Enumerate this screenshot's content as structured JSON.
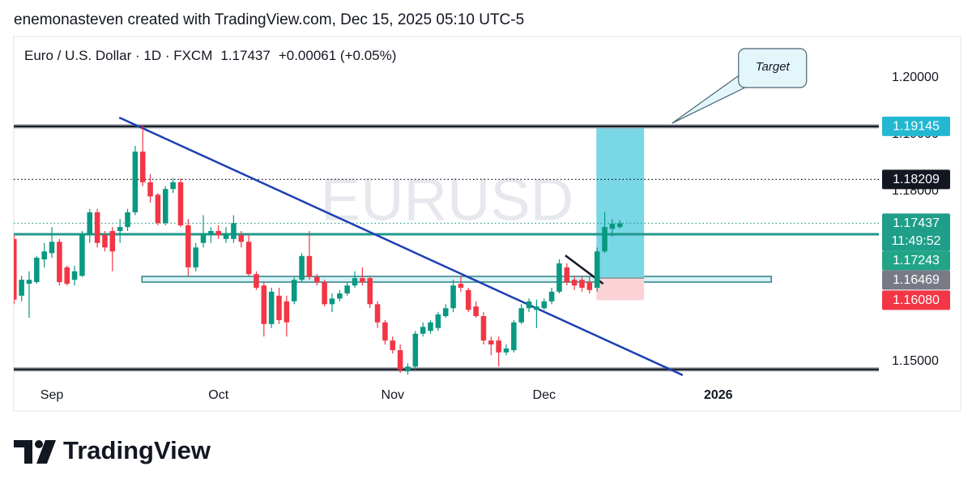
{
  "caption": "enemonasteven created with TradingView.com, Dec 15, 2025 05:10 UTC-5",
  "footer": {
    "brand": "TradingView"
  },
  "chart_data": {
    "type": "candlestick",
    "header": {
      "name": "Euro / U.S. Dollar · 1D · FXCM",
      "price": "1.17437",
      "change": "+0.00061 (+0.05%)"
    },
    "watermark": "EURUSD",
    "up_color": "#089981",
    "down_color": "#f23645",
    "x": [
      -5,
      -4,
      -3,
      -2,
      -1,
      0,
      1,
      2,
      3,
      4,
      5,
      6,
      7,
      8,
      9,
      10,
      11,
      12,
      13,
      14,
      15,
      16,
      17,
      18,
      19,
      20,
      21,
      22,
      23,
      24,
      25,
      26,
      27,
      28,
      29,
      30,
      31,
      32,
      33,
      34,
      35,
      36,
      37,
      38,
      39,
      40,
      41,
      42,
      43,
      44,
      45,
      46,
      47,
      48,
      49,
      50,
      51,
      52,
      53,
      54,
      55,
      56,
      57,
      58,
      59,
      60,
      61,
      62,
      63,
      64,
      65,
      66,
      67,
      68,
      69,
      70,
      71,
      72,
      73,
      74,
      75
    ],
    "open": [
      1.1716,
      1.1616,
      1.1637,
      1.164,
      1.168,
      1.1691,
      1.1711,
      1.1666,
      1.1644,
      1.1651,
      1.1723,
      1.1763,
      1.1723,
      1.173,
      1.173,
      1.1737,
      1.1763,
      1.187,
      1.1816,
      1.1794,
      1.1744,
      1.1804,
      1.1816,
      1.174,
      1.1666,
      1.1709,
      1.1723,
      1.173,
      1.1716,
      1.1716,
      1.1723,
      1.1711,
      1.1654,
      1.1634,
      1.1566,
      1.1616,
      1.1606,
      1.1606,
      1.1644,
      1.1686,
      1.1649,
      1.164,
      1.1601,
      1.1611,
      1.162,
      1.1634,
      1.1647,
      1.1647,
      1.1601,
      1.1569,
      1.1537,
      1.152,
      1.1483,
      1.1491,
      1.1549,
      1.1554,
      1.1559,
      1.158,
      1.1594,
      1.1637,
      1.1626,
      1.1597,
      1.158,
      1.1537,
      1.1537,
      1.1516,
      1.152,
      1.1569,
      1.1594,
      1.1591,
      1.1594,
      1.1606,
      1.1623,
      1.1666,
      1.1644,
      1.1644,
      1.164,
      1.163,
      1.1694,
      1.1734,
      1.1737
    ],
    "high": [
      1.1723,
      1.1651,
      1.1659,
      1.1686,
      1.1709,
      1.1737,
      1.1716,
      1.1669,
      1.1669,
      1.173,
      1.1769,
      1.1769,
      1.173,
      1.1737,
      1.1751,
      1.1769,
      1.188,
      1.1916,
      1.183,
      1.1797,
      1.1809,
      1.1823,
      1.1823,
      1.1751,
      1.1709,
      1.1758,
      1.1737,
      1.174,
      1.1737,
      1.1758,
      1.173,
      1.1723,
      1.1659,
      1.164,
      1.163,
      1.163,
      1.1616,
      1.1649,
      1.1691,
      1.173,
      1.1654,
      1.1644,
      1.162,
      1.1626,
      1.164,
      1.1659,
      1.1666,
      1.1651,
      1.1606,
      1.1573,
      1.1544,
      1.153,
      1.1497,
      1.1554,
      1.1569,
      1.1573,
      1.1587,
      1.1601,
      1.1644,
      1.1651,
      1.163,
      1.1606,
      1.1587,
      1.1544,
      1.1544,
      1.153,
      1.1573,
      1.1601,
      1.1611,
      1.1609,
      1.1611,
      1.163,
      1.168,
      1.1673,
      1.1651,
      1.1651,
      1.1649,
      1.1701,
      1.1763,
      1.1751,
      1.1749
    ],
    "low": [
      1.1601,
      1.1606,
      1.1577,
      1.1637,
      1.1666,
      1.1683,
      1.1634,
      1.1634,
      1.1634,
      1.1649,
      1.1709,
      1.1701,
      1.1694,
      1.1659,
      1.1709,
      1.173,
      1.1758,
      1.1809,
      1.178,
      1.174,
      1.174,
      1.1797,
      1.1737,
      1.1651,
      1.1659,
      1.1701,
      1.1709,
      1.1716,
      1.1709,
      1.1709,
      1.1701,
      1.1651,
      1.1626,
      1.1544,
      1.1559,
      1.1566,
      1.1544,
      1.1601,
      1.164,
      1.1644,
      1.1634,
      1.1597,
      1.1587,
      1.1606,
      1.1616,
      1.163,
      1.1634,
      1.1594,
      1.1559,
      1.153,
      1.1514,
      1.148,
      1.1477,
      1.1486,
      1.1544,
      1.1549,
      1.1554,
      1.1577,
      1.1587,
      1.1623,
      1.1587,
      1.1577,
      1.153,
      1.1511,
      1.1491,
      1.1511,
      1.1516,
      1.1566,
      1.1587,
      1.1559,
      1.1591,
      1.1601,
      1.162,
      1.1634,
      1.1626,
      1.1623,
      1.162,
      1.1623,
      1.1691,
      1.172,
      1.1734
    ],
    "close": [
      1.1609,
      1.1644,
      1.1644,
      1.1683,
      1.1694,
      1.1711,
      1.164,
      1.1637,
      1.1659,
      1.1723,
      1.1763,
      1.1709,
      1.1701,
      1.1694,
      1.1737,
      1.1763,
      1.187,
      1.1816,
      1.1791,
      1.1744,
      1.1804,
      1.1816,
      1.174,
      1.1666,
      1.1701,
      1.1726,
      1.173,
      1.1723,
      1.1726,
      1.1744,
      1.1711,
      1.1654,
      1.163,
      1.1566,
      1.1623,
      1.1573,
      1.1569,
      1.1644,
      1.1686,
      1.1649,
      1.164,
      1.1601,
      1.1611,
      1.162,
      1.1634,
      1.1647,
      1.164,
      1.1601,
      1.1569,
      1.1537,
      1.152,
      1.1486,
      1.1491,
      1.1549,
      1.1561,
      1.1569,
      1.1583,
      1.1594,
      1.1634,
      1.163,
      1.1591,
      1.158,
      1.1537,
      1.153,
      1.1516,
      1.1523,
      1.1569,
      1.1594,
      1.1606,
      1.1597,
      1.1606,
      1.1623,
      1.1673,
      1.164,
      1.1634,
      1.163,
      1.1626,
      1.1694,
      1.1737,
      1.1743,
      1.17437
    ],
    "xlim": [
      -5.03,
      109.2
    ],
    "xticks": [
      {
        "value": 0,
        "label": "Sep"
      },
      {
        "value": 22,
        "label": "Oct"
      },
      {
        "value": 45,
        "label": "Nov"
      },
      {
        "value": 65,
        "label": "Dec"
      },
      {
        "value": 88,
        "label": "2026"
      }
    ],
    "ylim": [
      1.14543,
      1.20729
    ],
    "yticks": [
      {
        "value": 1.15,
        "label": "1.15000"
      },
      {
        "value": 1.18,
        "label": "1.18000"
      },
      {
        "value": 1.19,
        "label": "1.19000"
      },
      {
        "value": 1.2,
        "label": "1.20000"
      }
    ],
    "price_labels": [
      {
        "value": 1.19145,
        "color": "#22b8d2",
        "line": "heavy",
        "line_color": "#131722"
      },
      {
        "value": 1.18209,
        "color": "#131722",
        "line": "dotted",
        "line_color": "#131722"
      },
      {
        "value": 1.17437,
        "color": "#1f9e89",
        "countdown": "11:49:52",
        "line": "dotted",
        "line_color": "#1f9e89"
      },
      {
        "value": 1.17243,
        "color": "#22a587",
        "line": "solid",
        "line_color": "#22998a"
      },
      {
        "value": 1.16469,
        "color": "#787b86"
      },
      {
        "value": 1.1608,
        "label": "1.16080",
        "color": "#f23645"
      }
    ],
    "horizontal_lines": [
      {
        "value": 1.1486,
        "line": "heavy",
        "line_color": "#131722"
      }
    ],
    "trendlines": [
      {
        "start": [
          8.9,
          1.193
        ],
        "end": [
          83.3,
          1.1476
        ],
        "color": "#1e3fb4"
      },
      {
        "start": [
          67.8,
          1.1687
        ],
        "end": [
          72.8,
          1.1637
        ],
        "color": "#131722"
      }
    ],
    "zones": [
      {
        "x": [
          11.9,
          95.0
        ],
        "price": [
          1.165,
          1.164
        ],
        "color": "#d6f3f5",
        "stroke": "#2c7f86"
      }
    ],
    "position": {
      "x": [
        71.9,
        78.2
      ],
      "target": 1.19145,
      "entry": 1.16469,
      "stop": 1.1608,
      "profit_color": "#7ad7e6",
      "loss_color": "#fbd3d7",
      "entry_color": "#8a8d96"
    },
    "annotations": [
      {
        "text": "Target",
        "x": 81.9,
        "y": 1.192
      }
    ]
  }
}
